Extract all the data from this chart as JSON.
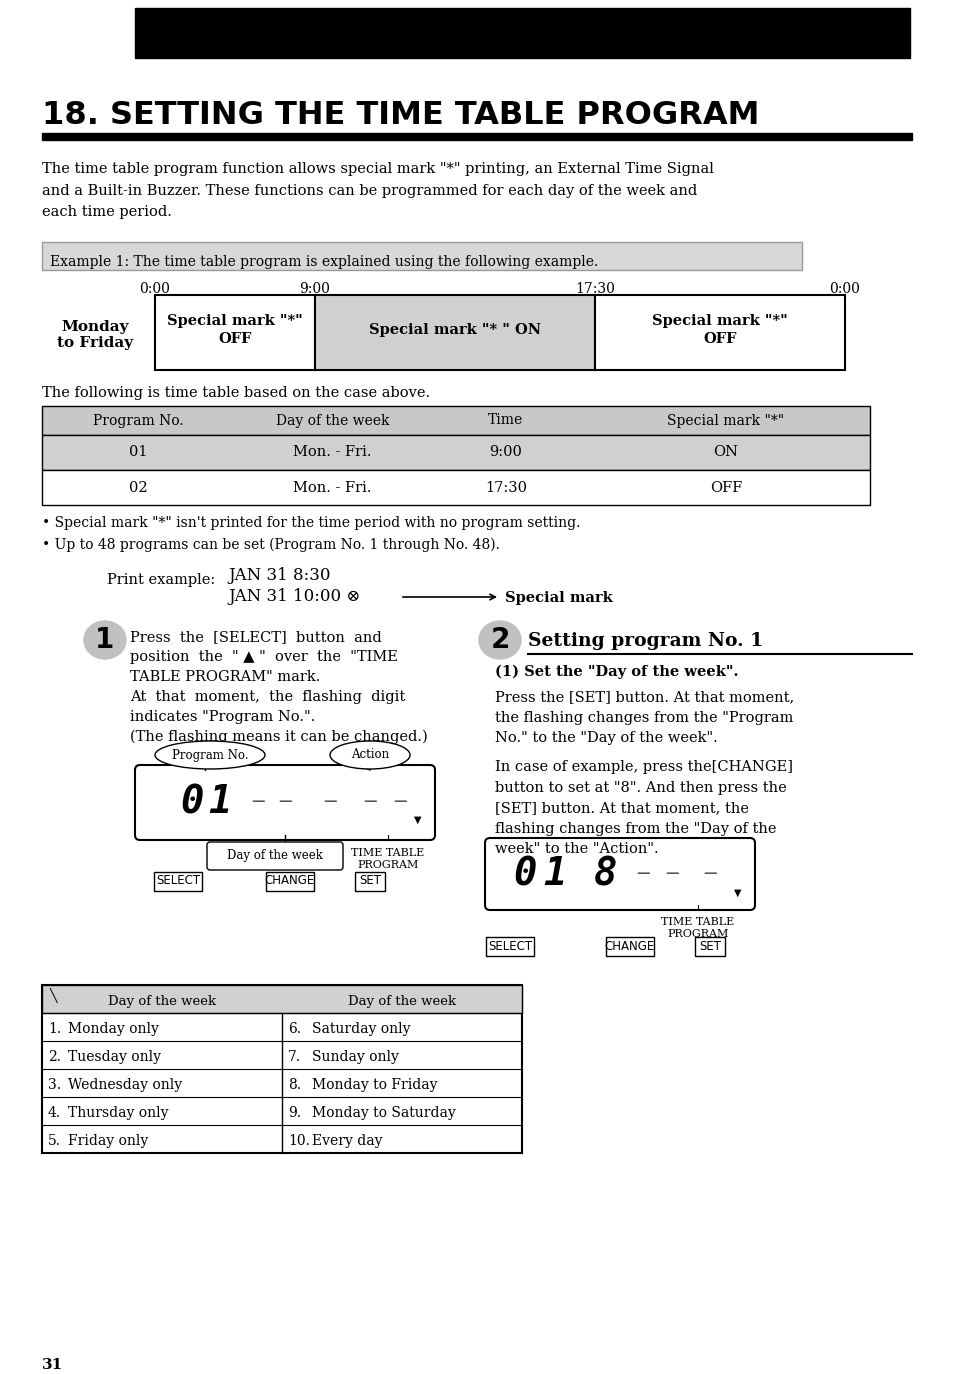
{
  "title": "18. SETTING THE TIME TABLE PROGRAM",
  "bg_color": "#ffffff",
  "page_number": "31",
  "body_text_1": "The time table program function allows special mark \"*\" printing, an External Time Signal\nand a Built-in Buzzer. These functions can be programmed for each day of the week and\neach time period.",
  "example_box_text": "Example 1: The time table program is explained using the following example.",
  "example_box_bg": "#d8d8d8",
  "timeline_times": [
    "0:00",
    "9:00",
    "17:30",
    "0:00"
  ],
  "timeline_row_label": "Monday\nto Friday",
  "timeline_cell_texts": [
    "Special mark \"*\"\nOFF",
    "Special mark \"* \" ON",
    "Special mark \"*\"\nOFF"
  ],
  "timeline_cell_colors": [
    "#ffffff",
    "#d0d0d0",
    "#ffffff"
  ],
  "table_header": [
    "Program No.",
    "Day of the week",
    "Time",
    "Special mark \"*\""
  ],
  "table_header_bg": "#c8c8c8",
  "table_rows": [
    [
      "01",
      "Mon. - Fri.",
      "9:00",
      "ON"
    ],
    [
      "02",
      "Mon. - Fri.",
      "17:30",
      "OFF"
    ]
  ],
  "table_row_bg": [
    "#d0d0d0",
    "#ffffff"
  ],
  "note1": "• Special mark \"*\" isn't printed for the time period with no program setting.",
  "note2": "• Up to 48 programs can be set (Program No. 1 through No. 48).",
  "print_example_label": "Print example:",
  "print_line1": "JAN 31 8:30",
  "print_line2": "JAN 31 10:00 ⊗",
  "special_mark_label": "Special mark",
  "step1_text_line1": "Press  the  [SELECT]  button  and",
  "step1_text_line2": "position  the  \" ▲ \"  over  the  \"TIME",
  "step1_text_line3": "TABLE PROGRAM\" mark.",
  "step1_text_line4": "At  that  moment,  the  flashing  digit",
  "step1_text_line5": "indicates \"Program No.\".",
  "step1_text_line6": "(The flashing means it can be changed.)",
  "step2_title": "Setting program No. 1",
  "step2_sub1": "(1) Set the \"Day of the week\".",
  "step2_text1": "Press the [SET] button. At that moment,\nthe flashing changes from the \"Program\nNo.\" to the \"Day of the week\".",
  "step2_text2": "In case of example, press the[CHANGE]\nbutton to set at \"8\". And then press the\n[SET] button. At that moment, the\nflashing changes from the \"Day of the\nweek\" to the \"Action\".",
  "buttons1": [
    "SELECT",
    "CHANGE",
    "SET"
  ],
  "buttons2": [
    "SELECT",
    "CHANGE",
    "SET"
  ],
  "day_table_headers": [
    "Day of the week",
    "Day of the week"
  ],
  "day_table_rows": [
    [
      "1.",
      "Monday only",
      "6.",
      "Saturday only"
    ],
    [
      "2.",
      "Tuesday only",
      "7.",
      "Sunday only"
    ],
    [
      "3.",
      "Wednesday only",
      "8.",
      "Monday to Friday"
    ],
    [
      "4.",
      "Thursday only",
      "9.",
      "Monday to Saturday"
    ],
    [
      "5.",
      "Friday only",
      "10.",
      "Every day"
    ]
  ]
}
